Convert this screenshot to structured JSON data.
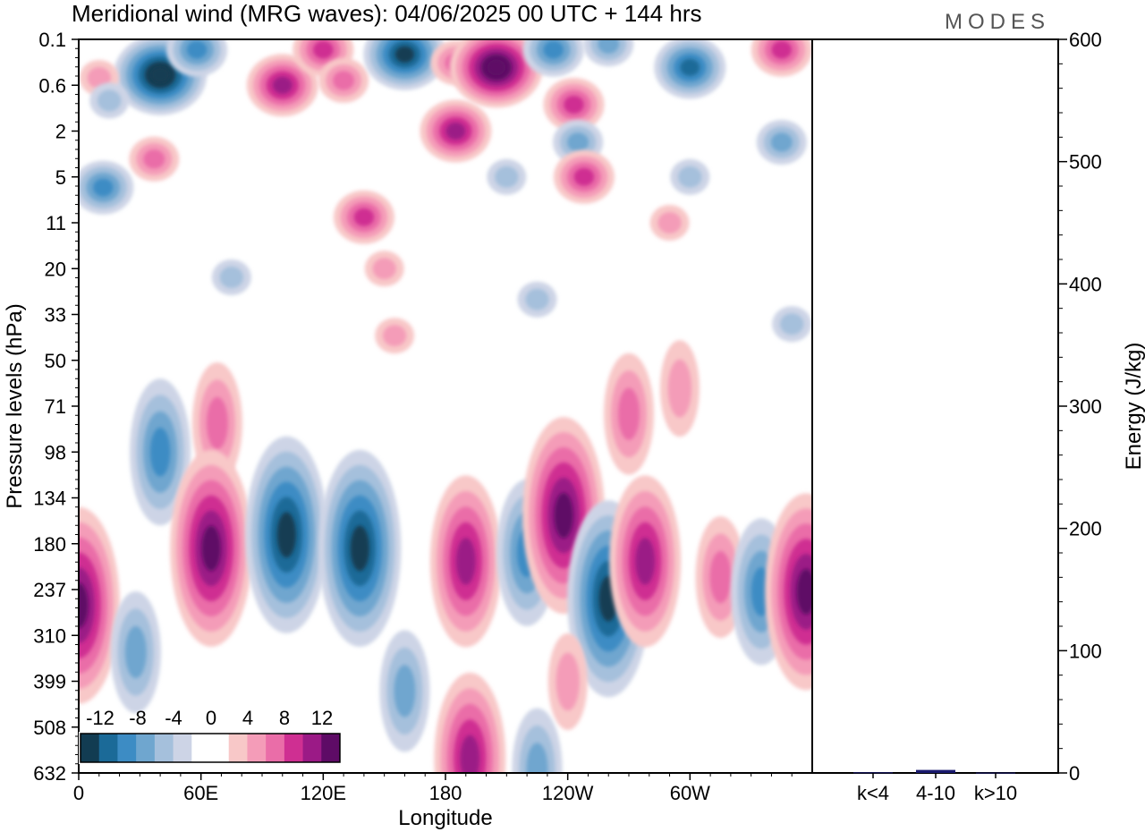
{
  "title": "Meridional wind (MRG waves):  04/06/2025  00 UTC  + 144 hrs",
  "logo": "MODES",
  "chart_data": [
    {
      "type": "heatmap",
      "title": "Meridional wind (MRG waves):  04/06/2025  00 UTC  + 144 hrs",
      "xlabel": "Longitude",
      "ylabel": "Pressure levels (hPa)",
      "x_ticks": [
        "0",
        "60E",
        "120E",
        "180",
        "120W",
        "60W"
      ],
      "y_ticks": [
        "0.1",
        "0.6",
        "2",
        "5",
        "11",
        "20",
        "33",
        "50",
        "71",
        "98",
        "134",
        "180",
        "237",
        "310",
        "399",
        "508",
        "632"
      ],
      "xlim": [
        0,
        360
      ],
      "colorbar": {
        "labels": [
          "-12",
          "-8",
          "-4",
          "0",
          "4",
          "8",
          "12"
        ],
        "levels": [
          -14,
          -12,
          -10,
          -8,
          -6,
          -4,
          -2,
          2,
          4,
          6,
          8,
          10,
          12,
          14
        ],
        "colors": [
          "#123c52",
          "#1b6a98",
          "#3d8cc4",
          "#6fa6cf",
          "#a5c0dc",
          "#cdd4e6",
          "#ffffff",
          "#ffffff",
          "#f8c8c8",
          "#f49cb8",
          "#ea6da8",
          "#cf2f92",
          "#9b1a86",
          "#5e0b66"
        ]
      },
      "features": [
        {
          "lon": 40,
          "level": 0.4,
          "value": -14
        },
        {
          "lon": 58,
          "level": 0.15,
          "value": -8
        },
        {
          "lon": 100,
          "level": 0.6,
          "value": 10
        },
        {
          "lon": 120,
          "level": 0.15,
          "value": 8
        },
        {
          "lon": 130,
          "level": 0.5,
          "value": 6
        },
        {
          "lon": 160,
          "level": 0.18,
          "value": -12
        },
        {
          "lon": 185,
          "level": 0.25,
          "value": 6
        },
        {
          "lon": 205,
          "level": 0.3,
          "value": 14
        },
        {
          "lon": 233,
          "level": 0.15,
          "value": -8
        },
        {
          "lon": 243,
          "level": 1.0,
          "value": 8
        },
        {
          "lon": 260,
          "level": 0.12,
          "value": -6
        },
        {
          "lon": 300,
          "level": 0.3,
          "value": -10
        },
        {
          "lon": 345,
          "level": 0.15,
          "value": 8
        },
        {
          "lon": 10,
          "level": 0.45,
          "value": 4
        },
        {
          "lon": 15,
          "level": 0.9,
          "value": -4
        },
        {
          "lon": 185,
          "level": 2,
          "value": 10
        },
        {
          "lon": 245,
          "level": 2.5,
          "value": -6
        },
        {
          "lon": 345,
          "level": 2.5,
          "value": -6
        },
        {
          "lon": 37,
          "level": 3.5,
          "value": 6
        },
        {
          "lon": 248,
          "level": 5,
          "value": 8
        },
        {
          "lon": 12,
          "level": 6,
          "value": -8
        },
        {
          "lon": 210,
          "level": 5,
          "value": -4
        },
        {
          "lon": 300,
          "level": 5,
          "value": -4
        },
        {
          "lon": 140,
          "level": 10,
          "value": 8
        },
        {
          "lon": 290,
          "level": 11,
          "value": 4
        },
        {
          "lon": 150,
          "level": 20,
          "value": 4
        },
        {
          "lon": 155,
          "level": 40,
          "value": 4
        },
        {
          "lon": 75,
          "level": 22,
          "value": -4
        },
        {
          "lon": 225,
          "level": 28,
          "value": -4
        },
        {
          "lon": 350,
          "level": 36,
          "value": -4
        },
        {
          "lon": 270,
          "level": 75,
          "value": 6
        },
        {
          "lon": 295,
          "level": 62,
          "value": 4
        },
        {
          "lon": 68,
          "level": 80,
          "value": 6
        },
        {
          "lon": 40,
          "level": 98,
          "value": -8
        },
        {
          "lon": 65,
          "level": 185,
          "value": 12
        },
        {
          "lon": 102,
          "level": 170,
          "value": -12
        },
        {
          "lon": 138,
          "level": 185,
          "value": -12
        },
        {
          "lon": 190,
          "level": 200,
          "value": 10
        },
        {
          "lon": 220,
          "level": 190,
          "value": -8
        },
        {
          "lon": 238,
          "level": 150,
          "value": 12
        },
        {
          "lon": 260,
          "level": 250,
          "value": -12
        },
        {
          "lon": 278,
          "level": 200,
          "value": 10
        },
        {
          "lon": 315,
          "level": 220,
          "value": 6
        },
        {
          "lon": 335,
          "level": 240,
          "value": -8
        },
        {
          "lon": 357,
          "level": 240,
          "value": 12
        },
        {
          "lon": 0,
          "level": 260,
          "value": 12
        },
        {
          "lon": 192,
          "level": 590,
          "value": 10
        },
        {
          "lon": 28,
          "level": 340,
          "value": -6
        },
        {
          "lon": 160,
          "level": 420,
          "value": -6
        },
        {
          "lon": 240,
          "level": 400,
          "value": 4
        },
        {
          "lon": 225,
          "level": 620,
          "value": -6
        }
      ]
    },
    {
      "type": "bar",
      "categories": [
        "k<4",
        "4-10",
        "k>10"
      ],
      "values": [
        0.5,
        2.5,
        0.3
      ],
      "ylabel": "Energy (J/kg)",
      "ylim": [
        0,
        600
      ],
      "y_ticks": [
        "0",
        "100",
        "200",
        "300",
        "400",
        "500",
        "600"
      ],
      "bar_color": "#1a1a6e"
    }
  ]
}
